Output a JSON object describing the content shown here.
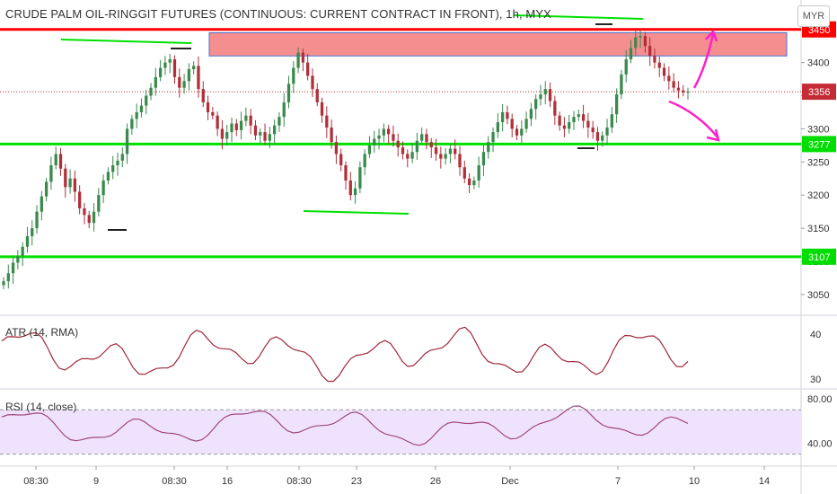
{
  "header": {
    "title": "CRUDE PALM OIL-RINGGIT FUTURES (CONTINUOUS: CURRENT CONTRACT IN FRONT), 1h, MYX",
    "currency": "MYR"
  },
  "colors": {
    "bull": "#3a8a4d",
    "bear": "#b0303a",
    "resistance_line": "#ff0000",
    "support_lines": "#00e000",
    "zone_fill": "#f58f8f",
    "zone_border": "#4a6fd0",
    "arrows": "#ff20c8",
    "atr": "#a0283c",
    "rsi": "#a0487a",
    "rsi_band": "#efe2ff",
    "axis_label_red": "#ff0000",
    "axis_label_green": "#00dd00",
    "axis_label_last": "#c52b35"
  },
  "chart_data": [
    {
      "type": "candlestick",
      "title": "CRUDE PALM OIL-RINGGIT FUTURES (CONTINUOUS: CURRENT CONTRACT IN FRONT), 1h, MYX",
      "ylim": [
        3020,
        3470
      ],
      "yticks": [
        3050,
        3100,
        3150,
        3200,
        3250,
        3300,
        3350,
        3400
      ],
      "xticks": [
        "08:30",
        "9",
        "08:30",
        "16",
        "08:30",
        "23",
        "26",
        "Dec",
        "7",
        "10",
        "14"
      ],
      "price_labels": [
        {
          "value": 3450,
          "label": "3450",
          "color": "#ff0000"
        },
        {
          "value": 3356,
          "label": "3356",
          "color": "#c52b35"
        },
        {
          "value": 3277,
          "label": "3277",
          "color": "#00dd00"
        },
        {
          "value": 3107,
          "label": "3107",
          "color": "#00dd00"
        }
      ],
      "horizontal_lines": [
        {
          "value": 3450,
          "color": "#ff0000"
        },
        {
          "value": 3277,
          "color": "#00e000"
        },
        {
          "value": 3107,
          "color": "#00e000"
        }
      ],
      "last_price": 3356,
      "resistance_zone": [
        3410,
        3445
      ],
      "candles_close": [
        3070,
        3082,
        3098,
        3108,
        3122,
        3138,
        3150,
        3175,
        3198,
        3220,
        3245,
        3262,
        3240,
        3212,
        3225,
        3205,
        3180,
        3170,
        3158,
        3175,
        3200,
        3222,
        3235,
        3245,
        3252,
        3262,
        3300,
        3315,
        3325,
        3335,
        3350,
        3362,
        3378,
        3392,
        3400,
        3405,
        3378,
        3362,
        3372,
        3390,
        3395,
        3360,
        3340,
        3325,
        3320,
        3300,
        3285,
        3295,
        3308,
        3298,
        3312,
        3320,
        3305,
        3290,
        3295,
        3282,
        3292,
        3305,
        3318,
        3340,
        3368,
        3392,
        3415,
        3400,
        3380,
        3360,
        3340,
        3320,
        3302,
        3280,
        3262,
        3245,
        3222,
        3200,
        3210,
        3242,
        3262,
        3275,
        3285,
        3290,
        3300,
        3292,
        3282,
        3272,
        3262,
        3255,
        3265,
        3282,
        3292,
        3280,
        3272,
        3262,
        3255,
        3262,
        3270,
        3262,
        3242,
        3225,
        3215,
        3222,
        3245,
        3265,
        3280,
        3295,
        3310,
        3325,
        3315,
        3300,
        3290,
        3300,
        3315,
        3330,
        3345,
        3352,
        3360,
        3342,
        3320,
        3305,
        3300,
        3310,
        3318,
        3322,
        3312,
        3302,
        3295,
        3282,
        3290,
        3302,
        3322,
        3352,
        3382,
        3405,
        3422,
        3438,
        3440,
        3425,
        3410,
        3400,
        3392,
        3380,
        3372,
        3362,
        3358,
        3355,
        3356
      ]
    },
    {
      "type": "line",
      "title": "ATR (14, RMA)",
      "ylim": [
        28,
        44
      ],
      "yticks": [
        30,
        40
      ]
    },
    {
      "type": "line",
      "title": "RSI (14, close)",
      "ylim": [
        20,
        88
      ],
      "yticks": [
        40.0,
        80.0
      ],
      "ytick_labels": [
        "40.00",
        "80.00"
      ],
      "band": [
        30,
        70
      ]
    }
  ],
  "panels": {
    "atr_label": "ATR (14, RMA)",
    "rsi_label": "RSI (14, close)"
  }
}
